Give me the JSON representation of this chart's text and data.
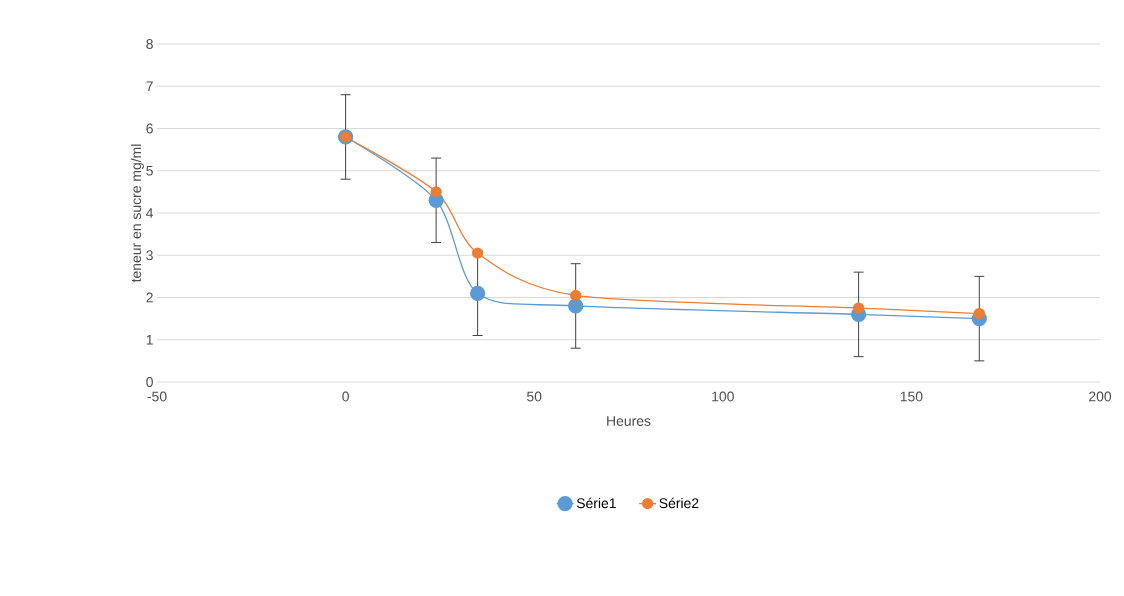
{
  "chart_data": {
    "type": "line",
    "xlabel": "Heures",
    "ylabel": "teneur  en sucre mg/ml",
    "x": [
      0,
      24,
      35,
      61,
      136,
      168
    ],
    "series": [
      {
        "name": "Série1",
        "color": "#5b9bd5",
        "values": [
          5.8,
          4.3,
          2.1,
          1.8,
          1.6,
          1.5
        ],
        "errors": [
          1,
          1,
          1,
          1,
          1,
          1
        ]
      },
      {
        "name": "Série2",
        "color": "#ed7d31",
        "values": [
          5.8,
          4.5,
          3.05,
          2.05,
          1.75,
          1.62
        ]
      }
    ],
    "xlim": [
      -50,
      200
    ],
    "xticks": [
      -50,
      0,
      50,
      100,
      150,
      200
    ],
    "ylim": [
      0,
      8
    ],
    "yticks": [
      0,
      1,
      2,
      3,
      4,
      5,
      6,
      7,
      8
    ],
    "grid": "y",
    "legend": "bottom",
    "marker": "circle",
    "line_style": "solid"
  }
}
